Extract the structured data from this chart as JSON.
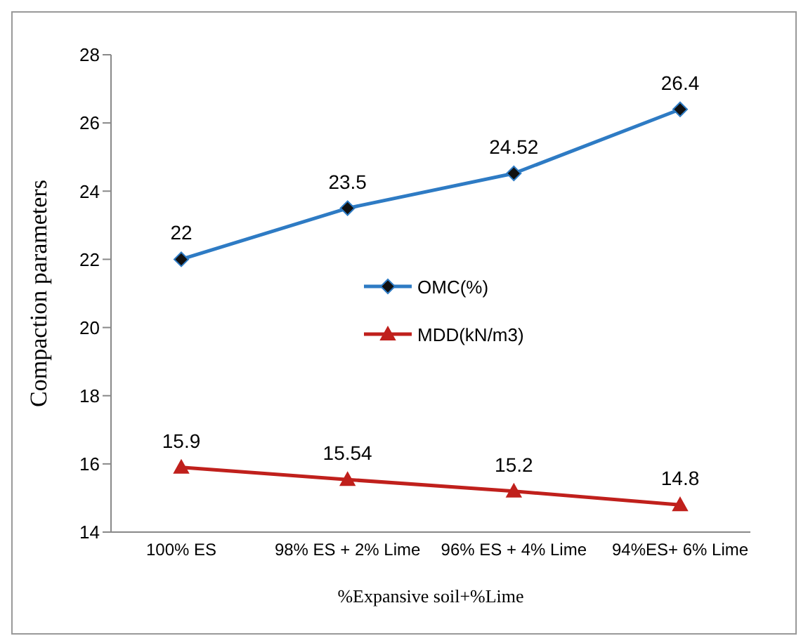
{
  "chart_data": {
    "type": "line",
    "xlabel": "%Expansive soil+%Lime",
    "ylabel": "Compaction  parameters",
    "categories": [
      "100% ES",
      "98% ES + 2% Lime",
      "96% ES + 4% Lime",
      "94%ES+ 6% Lime"
    ],
    "series": [
      {
        "name": "OMC(%)",
        "color": "#2e7bc4",
        "values": [
          22,
          23.5,
          24.52,
          26.4
        ],
        "marker": "diamond"
      },
      {
        "name": "MDD(kN/m3)",
        "color": "#c0201c",
        "values": [
          15.9,
          15.54,
          15.2,
          14.8
        ],
        "marker": "triangle"
      }
    ],
    "ylim": [
      14,
      28
    ],
    "yticks": [
      14,
      16,
      18,
      20,
      22,
      24,
      26,
      28
    ],
    "data_labels": true,
    "legend": "center",
    "grid": false
  }
}
